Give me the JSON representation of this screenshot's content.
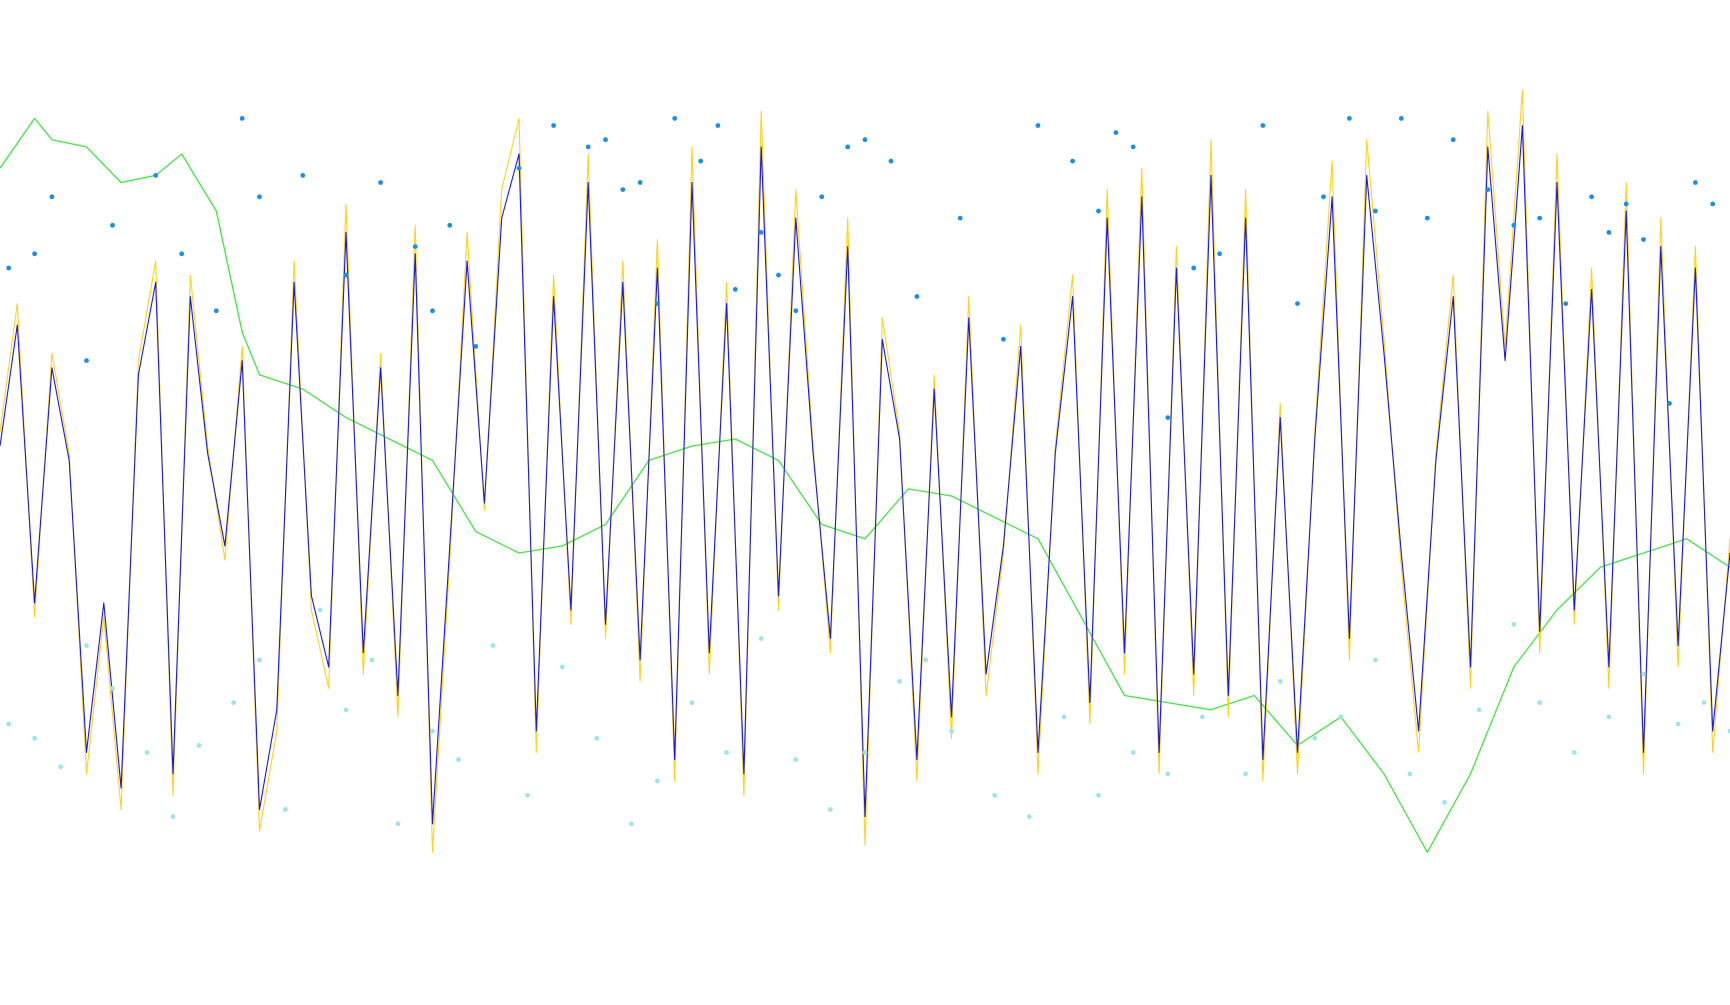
{
  "chart_data": {
    "type": "line",
    "title": "",
    "xlabel": "",
    "ylabel": "",
    "xlim": [
      0,
      400
    ],
    "ylim": [
      -1.2,
      1.2
    ],
    "grid": false,
    "legend": "none",
    "colors": {
      "background": "#ffffff",
      "oscillator_main": "#1a1ad6",
      "oscillator_signal": "#ffd21f",
      "trend": "#44e444",
      "peak_markers": "#1b8fe8",
      "trough_markers": "#9fe4ec"
    },
    "series": [
      {
        "role": "trend",
        "color_key": "trend",
        "x": [
          0,
          8,
          12,
          20,
          28,
          36,
          42,
          50,
          56,
          60,
          70,
          80,
          90,
          100,
          110,
          120,
          130,
          140,
          150,
          160,
          170,
          180,
          190,
          200,
          210,
          220,
          230,
          240,
          250,
          260,
          270,
          280,
          290,
          300,
          310,
          320,
          330,
          340,
          350,
          360,
          370,
          380,
          390,
          400
        ],
        "y": [
          0.84,
          0.98,
          0.92,
          0.9,
          0.8,
          0.82,
          0.88,
          0.72,
          0.38,
          0.26,
          0.22,
          0.14,
          0.08,
          0.02,
          -0.18,
          -0.24,
          -0.22,
          -0.16,
          0.02,
          0.06,
          0.08,
          0.02,
          -0.16,
          -0.2,
          -0.06,
          -0.08,
          -0.14,
          -0.2,
          -0.42,
          -0.64,
          -0.66,
          -0.68,
          -0.64,
          -0.78,
          -0.7,
          -0.86,
          -1.08,
          -0.86,
          -0.56,
          -0.4,
          -0.28,
          -0.24,
          -0.2,
          -0.28
        ]
      },
      {
        "role": "oscillator-signal",
        "color_key": "oscillator_signal",
        "x": [
          0,
          4,
          8,
          12,
          16,
          20,
          24,
          28,
          32,
          36,
          40,
          44,
          48,
          52,
          56,
          60,
          64,
          68,
          72,
          76,
          80,
          84,
          88,
          92,
          96,
          100,
          104,
          108,
          112,
          116,
          120,
          124,
          128,
          132,
          136,
          140,
          144,
          148,
          152,
          156,
          160,
          164,
          168,
          172,
          176,
          180,
          184,
          188,
          192,
          196,
          200,
          204,
          208,
          212,
          216,
          220,
          224,
          228,
          232,
          236,
          240,
          244,
          248,
          252,
          256,
          260,
          264,
          268,
          272,
          276,
          280,
          284,
          288,
          292,
          296,
          300,
          304,
          308,
          312,
          316,
          320,
          324,
          328,
          332,
          336,
          340,
          344,
          348,
          352,
          356,
          360,
          364,
          368,
          372,
          376,
          380,
          384,
          388,
          392,
          396,
          400
        ],
        "y": [
          0.1,
          0.46,
          -0.42,
          0.32,
          0.04,
          -0.86,
          -0.42,
          -0.96,
          0.3,
          0.58,
          -0.92,
          0.54,
          0.06,
          -0.26,
          0.34,
          -1.02,
          -0.74,
          0.58,
          -0.4,
          -0.62,
          0.74,
          -0.58,
          0.32,
          -0.7,
          0.68,
          -1.08,
          -0.26,
          0.66,
          -0.12,
          0.78,
          0.98,
          -0.8,
          0.54,
          -0.44,
          0.88,
          -0.48,
          0.58,
          -0.6,
          0.64,
          -0.88,
          0.9,
          -0.58,
          0.52,
          -0.92,
          1.0,
          -0.4,
          0.78,
          0.06,
          -0.52,
          0.7,
          -1.06,
          0.42,
          0.1,
          -0.88,
          0.26,
          -0.76,
          0.48,
          -0.64,
          -0.24,
          0.4,
          -0.86,
          0.06,
          0.54,
          -0.72,
          0.78,
          -0.58,
          0.84,
          -0.86,
          0.62,
          -0.64,
          0.92,
          -0.7,
          0.78,
          -0.88,
          0.18,
          -0.86,
          0.1,
          0.86,
          -0.54,
          0.92,
          0.36,
          -0.28,
          -0.8,
          0.04,
          0.54,
          -0.62,
          1.0,
          0.34,
          1.06,
          -0.52,
          0.88,
          -0.44,
          0.56,
          -0.62,
          0.8,
          -0.86,
          0.7,
          -0.56,
          0.62,
          -0.8,
          -0.2
        ]
      },
      {
        "role": "oscillator-main",
        "color_key": "oscillator_main",
        "x": [
          0,
          4,
          8,
          12,
          16,
          20,
          24,
          28,
          32,
          36,
          40,
          44,
          48,
          52,
          56,
          60,
          64,
          68,
          72,
          76,
          80,
          84,
          88,
          92,
          96,
          100,
          104,
          108,
          112,
          116,
          120,
          124,
          128,
          132,
          136,
          140,
          144,
          148,
          152,
          156,
          160,
          164,
          168,
          172,
          176,
          180,
          184,
          188,
          192,
          196,
          200,
          204,
          208,
          212,
          216,
          220,
          224,
          228,
          232,
          236,
          240,
          244,
          248,
          252,
          256,
          260,
          264,
          268,
          272,
          276,
          280,
          284,
          288,
          292,
          296,
          300,
          304,
          308,
          312,
          316,
          320,
          324,
          328,
          332,
          336,
          340,
          344,
          348,
          352,
          356,
          360,
          364,
          368,
          372,
          376,
          380,
          384,
          388,
          392,
          396,
          400
        ],
        "y": [
          0.06,
          0.4,
          -0.38,
          0.28,
          0.02,
          -0.8,
          -0.38,
          -0.9,
          0.26,
          0.52,
          -0.86,
          0.48,
          0.04,
          -0.22,
          0.3,
          -0.96,
          -0.68,
          0.52,
          -0.36,
          -0.56,
          0.66,
          -0.52,
          0.28,
          -0.64,
          0.6,
          -1.0,
          -0.22,
          0.58,
          -0.1,
          0.7,
          0.88,
          -0.74,
          0.48,
          -0.4,
          0.8,
          -0.44,
          0.52,
          -0.54,
          0.56,
          -0.82,
          0.8,
          -0.52,
          0.46,
          -0.86,
          0.9,
          -0.36,
          0.7,
          0.04,
          -0.48,
          0.62,
          -0.98,
          0.36,
          0.08,
          -0.82,
          0.22,
          -0.7,
          0.42,
          -0.58,
          -0.22,
          0.34,
          -0.8,
          0.04,
          0.48,
          -0.66,
          0.7,
          -0.52,
          0.76,
          -0.8,
          0.56,
          -0.58,
          0.82,
          -0.64,
          0.7,
          -0.82,
          0.14,
          -0.8,
          0.08,
          0.76,
          -0.48,
          0.82,
          0.32,
          -0.24,
          -0.74,
          0.02,
          0.48,
          -0.56,
          0.9,
          0.3,
          0.96,
          -0.46,
          0.8,
          -0.4,
          0.5,
          -0.56,
          0.72,
          -0.8,
          0.62,
          -0.5,
          0.56,
          -0.74,
          -0.24
        ]
      },
      {
        "role": "peak-markers",
        "color_key": "peak_markers",
        "x": [
          2,
          8,
          12,
          20,
          26,
          36,
          42,
          50,
          56,
          60,
          70,
          80,
          88,
          96,
          100,
          104,
          110,
          120,
          128,
          136,
          140,
          144,
          148,
          152,
          156,
          162,
          166,
          170,
          176,
          180,
          184,
          190,
          196,
          200,
          206,
          212,
          222,
          232,
          240,
          248,
          254,
          258,
          262,
          270,
          276,
          282,
          292,
          300,
          306,
          312,
          318,
          324,
          330,
          336,
          344,
          350,
          356,
          362,
          368,
          372,
          376,
          380,
          386,
          392,
          396
        ],
        "y": [
          0.56,
          0.6,
          0.76,
          0.3,
          0.68,
          0.82,
          0.6,
          0.44,
          0.98,
          0.76,
          0.82,
          0.54,
          0.8,
          0.62,
          0.44,
          0.68,
          0.34,
          0.84,
          0.96,
          0.9,
          0.92,
          0.78,
          0.8,
          0.46,
          0.98,
          0.86,
          0.96,
          0.5,
          0.66,
          0.54,
          0.44,
          0.76,
          0.9,
          0.92,
          0.86,
          0.48,
          0.7,
          0.36,
          0.96,
          0.86,
          0.72,
          0.94,
          0.9,
          0.14,
          0.56,
          0.6,
          0.96,
          0.46,
          0.76,
          0.98,
          0.72,
          0.98,
          0.7,
          0.92,
          0.78,
          0.68,
          0.7,
          0.46,
          0.76,
          0.66,
          0.74,
          0.64,
          0.18,
          0.8,
          0.74
        ]
      },
      {
        "role": "trough-markers",
        "color_key": "trough_markers",
        "x": [
          2,
          8,
          14,
          20,
          26,
          34,
          40,
          46,
          54,
          60,
          66,
          74,
          80,
          86,
          92,
          100,
          106,
          114,
          122,
          130,
          138,
          146,
          152,
          160,
          168,
          176,
          184,
          192,
          200,
          208,
          214,
          220,
          230,
          238,
          246,
          254,
          262,
          270,
          278,
          288,
          296,
          304,
          310,
          318,
          326,
          334,
          342,
          350,
          356,
          364,
          372,
          380,
          388,
          394,
          400
        ],
        "y": [
          -0.72,
          -0.76,
          -0.84,
          -0.5,
          -0.62,
          -0.8,
          -0.98,
          -0.78,
          -0.66,
          -0.54,
          -0.96,
          -0.4,
          -0.68,
          -0.54,
          -1.0,
          -0.74,
          -0.82,
          -0.5,
          -0.92,
          -0.56,
          -0.76,
          -1.0,
          -0.88,
          -0.66,
          -0.8,
          -0.48,
          -0.82,
          -0.96,
          -0.8,
          -0.6,
          -0.54,
          -0.74,
          -0.92,
          -0.98,
          -0.7,
          -0.92,
          -0.8,
          -0.86,
          -0.7,
          -0.86,
          -0.6,
          -0.76,
          -0.7,
          -0.54,
          -0.86,
          -0.94,
          -0.68,
          -0.44,
          -0.66,
          -0.8,
          -0.7,
          -0.58,
          -0.72,
          -0.66,
          -0.74
        ]
      }
    ]
  }
}
